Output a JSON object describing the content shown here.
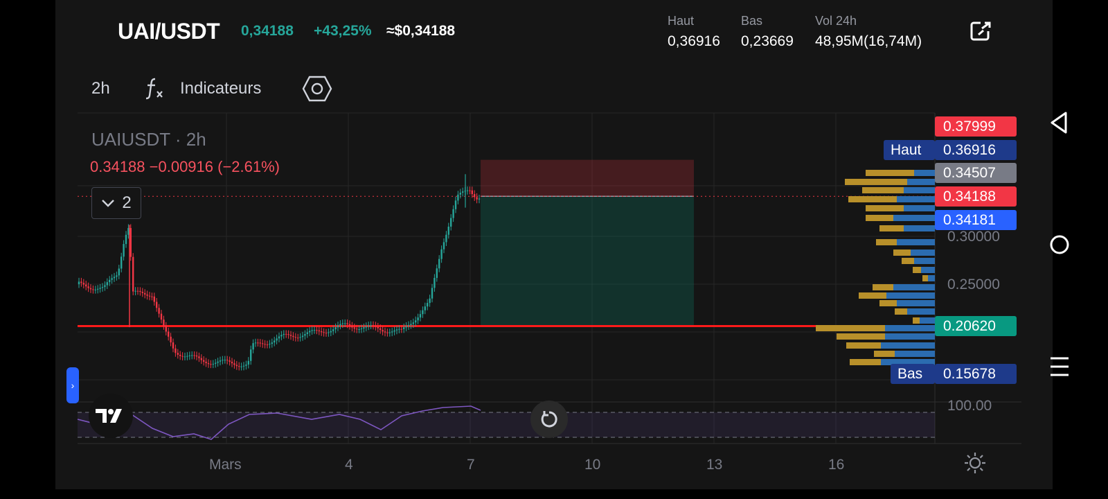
{
  "header": {
    "pair": "UAI/USDT",
    "price": "0,34188",
    "change": "+43,25%",
    "usd_price": "≈$0,34188",
    "high_label": "Haut",
    "high_value": "0,36916",
    "low_label": "Bas",
    "low_value": "0,23669",
    "vol_label": "Vol 24h",
    "vol_value": "48,95M(16,74M)"
  },
  "toolbar": {
    "timeframe": "2h",
    "indicators_label": "Indicateurs"
  },
  "legend": {
    "symbol": "UAIUSDT · 2h",
    "quote": "0.34188  −0.00916 (−2.61%)",
    "collapse_count": "2"
  },
  "price_tags": {
    "top": "0.37999",
    "high_label": "Haut",
    "high": "0.36916",
    "gray": "0.34507",
    "last": "0.34188",
    "blue": "0.34181",
    "support": "0.20620",
    "low_label": "Bas",
    "low": "0.15678"
  },
  "price_axis": [
    "0.30000",
    "0.25000",
    "100.00"
  ],
  "date_axis": [
    "Mars",
    "4",
    "7",
    "10",
    "13",
    "16"
  ],
  "colors": {
    "up": "#26a69a",
    "down": "#f23645",
    "accent": "#2962ff",
    "support_line": "#ff1a1a",
    "rsi": "#7e57c2"
  },
  "icons": {
    "external": "external-link-icon",
    "fx": "fx-icon",
    "settings": "hexagon-settings-icon",
    "reset": "reset-icon",
    "theme": "sun-icon"
  },
  "chart_data": {
    "type": "candlestick",
    "symbol": "UAIUSDT",
    "interval": "2h",
    "last": 0.34188,
    "high": 0.36916,
    "low": 0.15678,
    "support_level": 0.2062,
    "position": {
      "entry": 0.34181,
      "stop": 0.37999,
      "target": 0.2062
    },
    "price_ticks": [
      0.3,
      0.25
    ],
    "x_ticks": [
      "Mars",
      "4",
      "7",
      "10",
      "13",
      "16"
    ],
    "rsi_upper_visible": "100.00"
  }
}
